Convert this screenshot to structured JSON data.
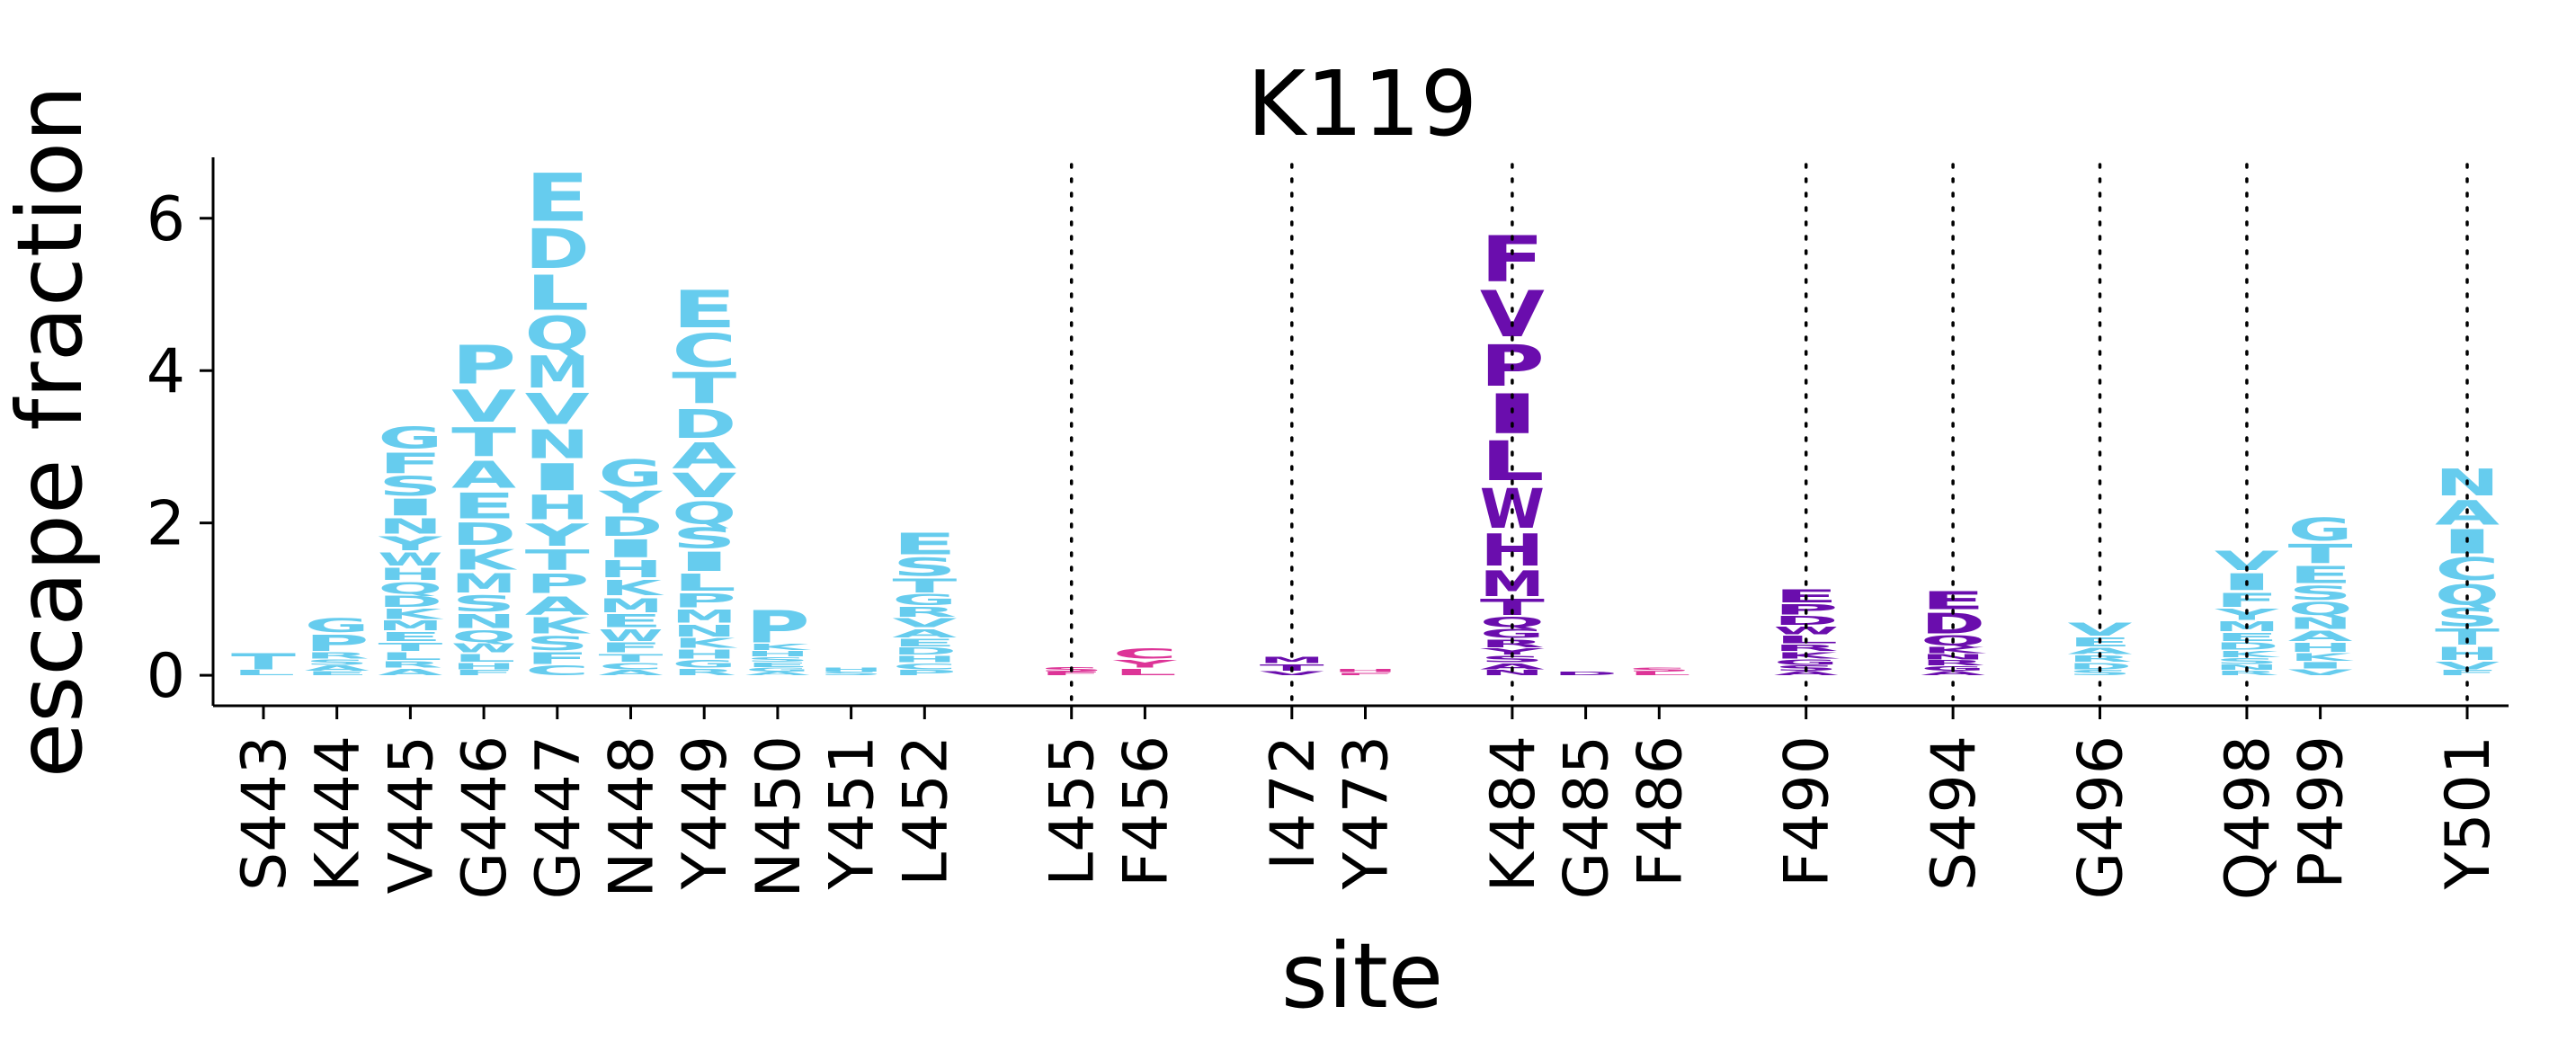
{
  "chart_data": {
    "type": "logo",
    "title": "K119",
    "xlabel": "site",
    "ylabel": "escape fraction",
    "ylim": [
      -0.4,
      6.8
    ],
    "yticks": [
      0,
      2,
      4,
      6
    ],
    "grid": false,
    "colors": {
      "blue": "#66CCEE",
      "pink": "#DD3497",
      "purple": "#6A0DAD"
    },
    "groups": [
      {
        "sites": [
          {
            "label": "S443",
            "color": "blue",
            "stack": [
              [
                "L",
                0.08
              ],
              [
                "T",
                0.25
              ]
            ]
          },
          {
            "label": "K444",
            "color": "blue",
            "stack": [
              [
                "E",
                0.06
              ],
              [
                "A",
                0.08
              ],
              [
                "S",
                0.08
              ],
              [
                "R",
                0.1
              ],
              [
                "P",
                0.25
              ],
              [
                "G",
                0.22
              ]
            ]
          },
          {
            "label": "V445",
            "color": "blue",
            "stack": [
              [
                "A",
                0.1
              ],
              [
                "R",
                0.1
              ],
              [
                "L",
                0.12
              ],
              [
                "T",
                0.13
              ],
              [
                "E",
                0.14
              ],
              [
                "M",
                0.15
              ],
              [
                "K",
                0.16
              ],
              [
                "D",
                0.17
              ],
              [
                "Q",
                0.18
              ],
              [
                "H",
                0.19
              ],
              [
                "W",
                0.2
              ],
              [
                "Y",
                0.22
              ],
              [
                "N",
                0.24
              ],
              [
                "I",
                0.26
              ],
              [
                "S",
                0.3
              ],
              [
                "F",
                0.32
              ],
              [
                "G",
                0.34
              ]
            ]
          },
          {
            "label": "G446",
            "color": "blue",
            "stack": [
              [
                "F",
                0.08
              ],
              [
                "H",
                0.1
              ],
              [
                "L",
                0.12
              ],
              [
                "W",
                0.14
              ],
              [
                "Q",
                0.18
              ],
              [
                "N",
                0.22
              ],
              [
                "S",
                0.25
              ],
              [
                "M",
                0.3
              ],
              [
                "K",
                0.32
              ],
              [
                "D",
                0.35
              ],
              [
                "E",
                0.4
              ],
              [
                "A",
                0.42
              ],
              [
                "T",
                0.45
              ],
              [
                "V",
                0.5
              ],
              [
                "P",
                0.6
              ]
            ]
          },
          {
            "label": "G447",
            "color": "blue",
            "stack": [
              [
                "C",
                0.15
              ],
              [
                "F",
                0.18
              ],
              [
                "S",
                0.22
              ],
              [
                "K",
                0.25
              ],
              [
                "A",
                0.28
              ],
              [
                "P",
                0.3
              ],
              [
                "T",
                0.32
              ],
              [
                "Y",
                0.35
              ],
              [
                "H",
                0.38
              ],
              [
                "I",
                0.42
              ],
              [
                "N",
                0.45
              ],
              [
                "V",
                0.48
              ],
              [
                "M",
                0.5
              ],
              [
                "Q",
                0.52
              ],
              [
                "L",
                0.55
              ],
              [
                "D",
                0.62
              ],
              [
                "E",
                0.75
              ]
            ]
          },
          {
            "label": "N448",
            "color": "blue",
            "stack": [
              [
                "A",
                0.08
              ],
              [
                "C",
                0.1
              ],
              [
                "T",
                0.12
              ],
              [
                "F",
                0.15
              ],
              [
                "W",
                0.18
              ],
              [
                "E",
                0.2
              ],
              [
                "M",
                0.22
              ],
              [
                "K",
                0.24
              ],
              [
                "H",
                0.26
              ],
              [
                "I",
                0.28
              ],
              [
                "D",
                0.3
              ],
              [
                "Y",
                0.35
              ],
              [
                "G",
                0.42
              ]
            ]
          },
          {
            "label": "Y449",
            "color": "blue",
            "stack": [
              [
                "R",
                0.1
              ],
              [
                "G",
                0.12
              ],
              [
                "H",
                0.14
              ],
              [
                "K",
                0.15
              ],
              [
                "N",
                0.18
              ],
              [
                "M",
                0.2
              ],
              [
                "P",
                0.22
              ],
              [
                "L",
                0.26
              ],
              [
                "I",
                0.3
              ],
              [
                "S",
                0.32
              ],
              [
                "Q",
                0.35
              ],
              [
                "V",
                0.38
              ],
              [
                "A",
                0.4
              ],
              [
                "D",
                0.45
              ],
              [
                "T",
                0.48
              ],
              [
                "C",
                0.52
              ],
              [
                "E",
                0.58
              ]
            ]
          },
          {
            "label": "N450",
            "color": "blue",
            "stack": [
              [
                "A",
                0.05
              ],
              [
                "G",
                0.06
              ],
              [
                "E",
                0.07
              ],
              [
                "S",
                0.07
              ],
              [
                "H",
                0.08
              ],
              [
                "K",
                0.1
              ],
              [
                "P",
                0.5
              ]
            ]
          },
          {
            "label": "Y451",
            "color": "blue",
            "stack": [
              [
                "S",
                0.05
              ],
              [
                "H",
                0.06
              ]
            ]
          },
          {
            "label": "L452",
            "color": "blue",
            "stack": [
              [
                "P",
                0.08
              ],
              [
                "C",
                0.09
              ],
              [
                "H",
                0.1
              ],
              [
                "D",
                0.11
              ],
              [
                "E",
                0.12
              ],
              [
                "A",
                0.13
              ],
              [
                "V",
                0.14
              ],
              [
                "R",
                0.15
              ],
              [
                "G",
                0.17
              ],
              [
                "T",
                0.22
              ],
              [
                "S",
                0.28
              ],
              [
                "E",
                0.34
              ]
            ]
          }
        ]
      },
      {
        "sites": [
          {
            "label": "L455",
            "color": "pink",
            "stack": [
              [
                "F",
                0.05
              ],
              [
                "S",
                0.07
              ]
            ]
          },
          {
            "label": "F456",
            "color": "pink",
            "stack": [
              [
                "L",
                0.1
              ],
              [
                "Y",
                0.12
              ],
              [
                "C",
                0.16
              ]
            ]
          }
        ]
      },
      {
        "sites": [
          {
            "label": "I472",
            "color": "purple",
            "stack": [
              [
                "V",
                0.06
              ],
              [
                "T",
                0.1
              ],
              [
                "M",
                0.1
              ]
            ]
          },
          {
            "label": "Y473",
            "color": "pink",
            "stack": [
              [
                "F",
                0.04
              ],
              [
                "H",
                0.04
              ]
            ]
          }
        ]
      },
      {
        "sites": [
          {
            "label": "K484",
            "color": "purple",
            "stack": [
              [
                "N",
                0.08
              ],
              [
                "A",
                0.09
              ],
              [
                "S",
                0.1
              ],
              [
                "Y",
                0.1
              ],
              [
                "R",
                0.12
              ],
              [
                "G",
                0.14
              ],
              [
                "Q",
                0.16
              ],
              [
                "T",
                0.25
              ],
              [
                "M",
                0.4
              ],
              [
                "H",
                0.5
              ],
              [
                "W",
                0.62
              ],
              [
                "L",
                0.62
              ],
              [
                "I",
                0.62
              ],
              [
                "P",
                0.65
              ],
              [
                "V",
                0.72
              ],
              [
                "F",
                0.72
              ]
            ]
          },
          {
            "label": "G485",
            "color": "purple",
            "stack": [
              [
                "D",
                0.05
              ]
            ]
          },
          {
            "label": "F486",
            "color": "pink",
            "stack": [
              [
                "L",
                0.05
              ],
              [
                "S",
                0.06
              ]
            ]
          }
        ]
      },
      {
        "sites": [
          {
            "label": "F490",
            "color": "purple",
            "stack": [
              [
                "A",
                0.06
              ],
              [
                "S",
                0.08
              ],
              [
                "G",
                0.08
              ],
              [
                "K",
                0.1
              ],
              [
                "R",
                0.1
              ],
              [
                "L",
                0.12
              ],
              [
                "W",
                0.12
              ],
              [
                "D",
                0.14
              ],
              [
                "P",
                0.16
              ],
              [
                "E",
                0.2
              ]
            ]
          }
        ]
      },
      {
        "sites": [
          {
            "label": "S494",
            "color": "purple",
            "stack": [
              [
                "A",
                0.06
              ],
              [
                "G",
                0.07
              ],
              [
                "R",
                0.08
              ],
              [
                "N",
                0.08
              ],
              [
                "K",
                0.1
              ],
              [
                "Q",
                0.16
              ],
              [
                "D",
                0.32
              ],
              [
                "E",
                0.28
              ]
            ]
          }
        ]
      },
      {
        "sites": [
          {
            "label": "G496",
            "color": "blue",
            "stack": [
              [
                "S",
                0.08
              ],
              [
                "D",
                0.1
              ],
              [
                "R",
                0.1
              ],
              [
                "A",
                0.1
              ],
              [
                "E",
                0.14
              ],
              [
                "V",
                0.2
              ]
            ]
          }
        ]
      },
      {
        "sites": [
          {
            "label": "Q498",
            "color": "blue",
            "stack": [
              [
                "R",
                0.07
              ],
              [
                "N",
                0.08
              ],
              [
                "S",
                0.09
              ],
              [
                "K",
                0.1
              ],
              [
                "D",
                0.11
              ],
              [
                "E",
                0.13
              ],
              [
                "M",
                0.15
              ],
              [
                "Y",
                0.17
              ],
              [
                "F",
                0.22
              ],
              [
                "I",
                0.26
              ],
              [
                "V",
                0.3
              ]
            ]
          },
          {
            "label": "P499",
            "color": "blue",
            "stack": [
              [
                "V",
                0.09
              ],
              [
                "I",
                0.1
              ],
              [
                "K",
                0.12
              ],
              [
                "H",
                0.14
              ],
              [
                "A",
                0.16
              ],
              [
                "N",
                0.18
              ],
              [
                "Q",
                0.2
              ],
              [
                "S",
                0.22
              ],
              [
                "E",
                0.26
              ],
              [
                "T",
                0.3
              ],
              [
                "G",
                0.35
              ]
            ]
          }
        ]
      },
      {
        "sites": [
          {
            "label": "Y501",
            "color": "blue",
            "stack": [
              [
                "F",
                0.08
              ],
              [
                "V",
                0.12
              ],
              [
                "H",
                0.2
              ],
              [
                "T",
                0.25
              ],
              [
                "S",
                0.28
              ],
              [
                "Q",
                0.32
              ],
              [
                "C",
                0.35
              ],
              [
                "I",
                0.38
              ],
              [
                "A",
                0.38
              ],
              [
                "N",
                0.42
              ]
            ]
          }
        ]
      }
    ]
  }
}
